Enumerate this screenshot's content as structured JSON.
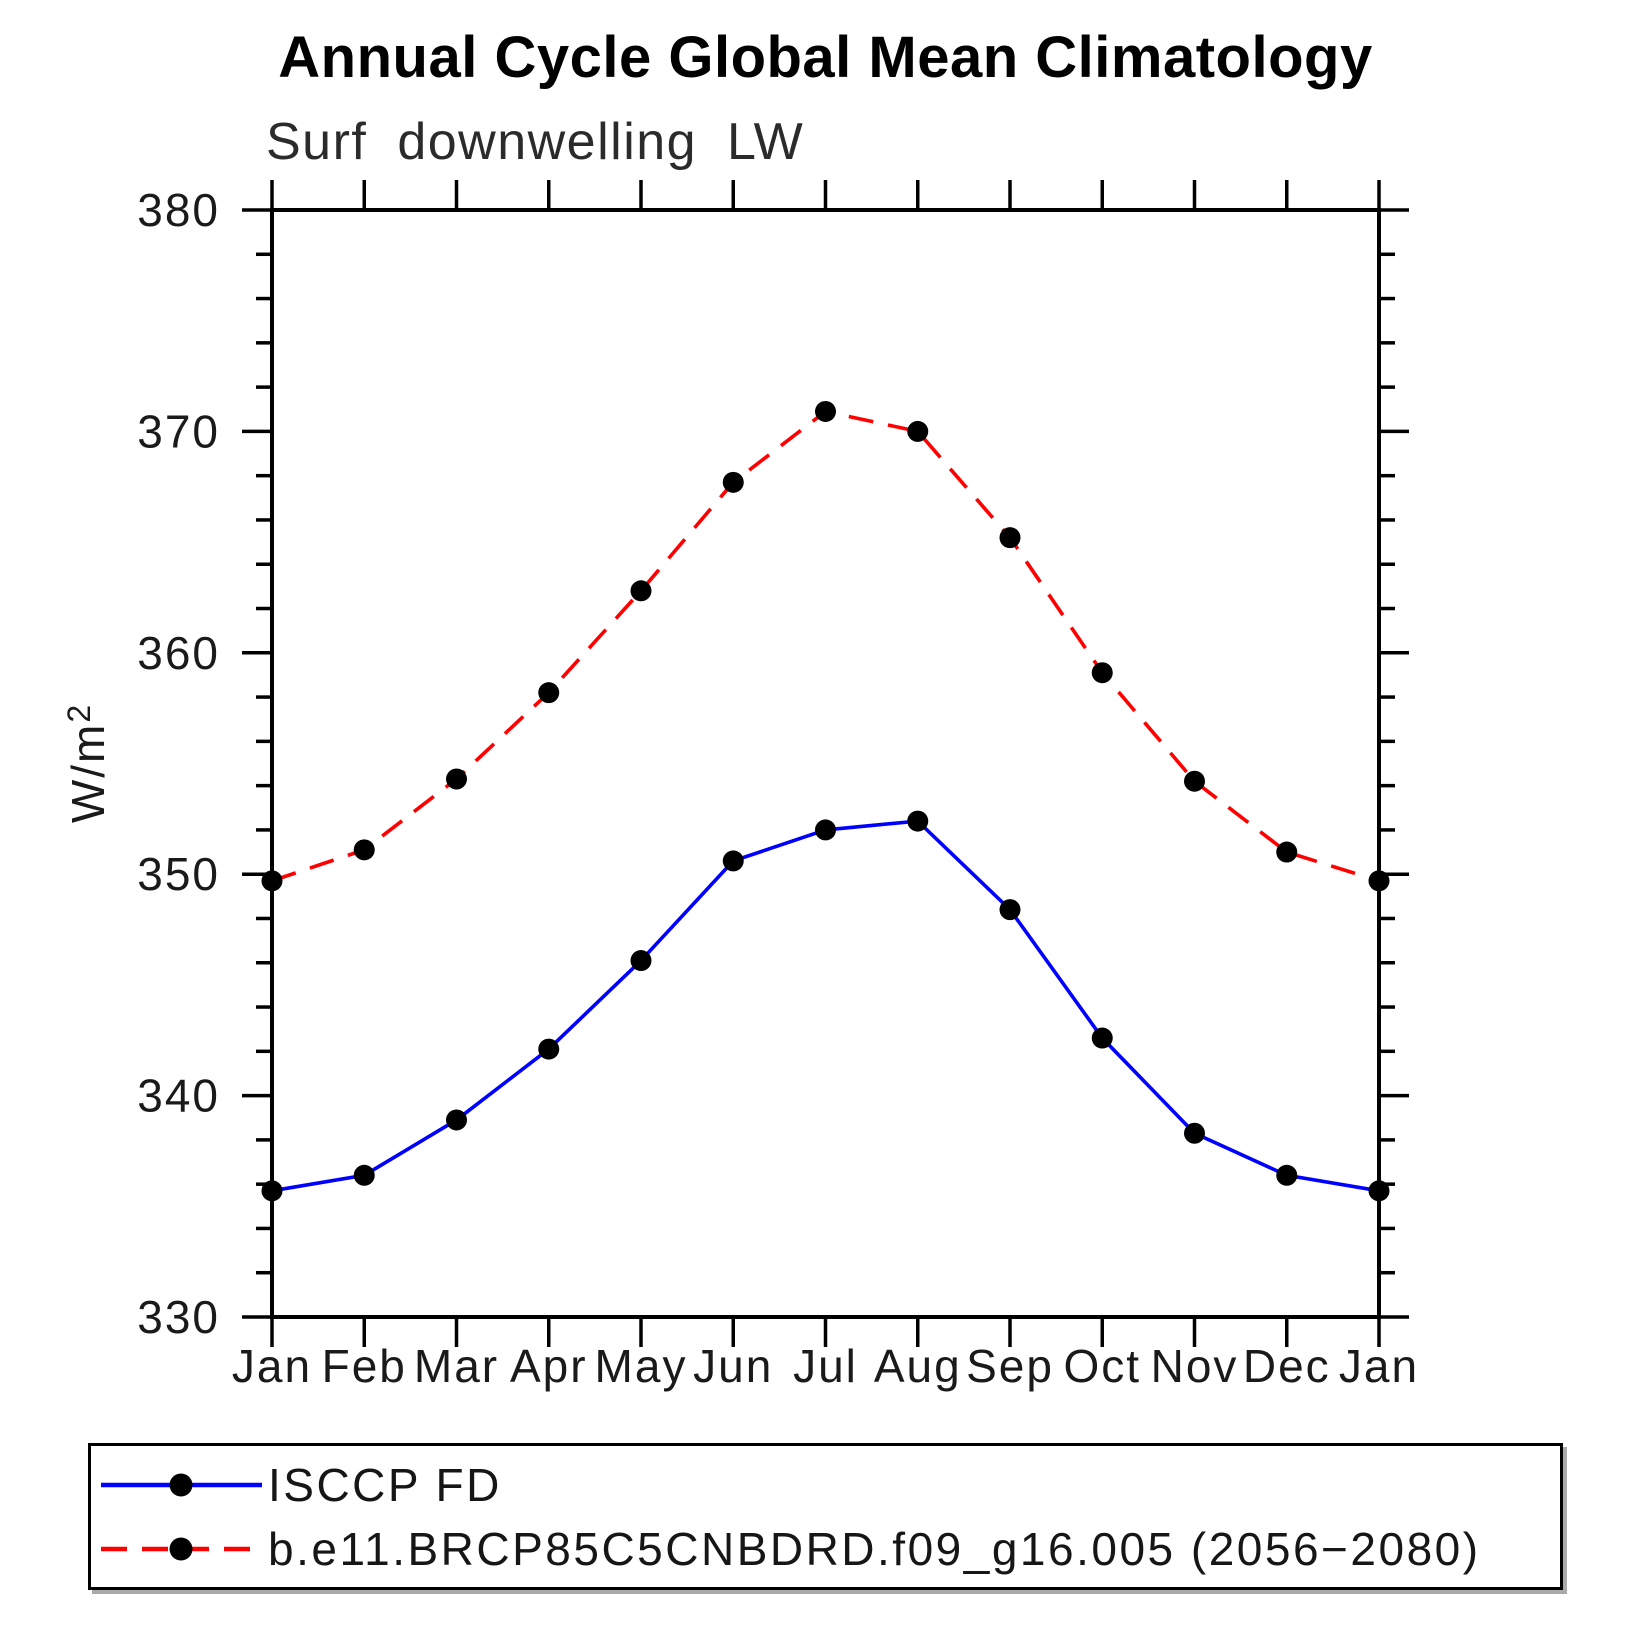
{
  "title": "Annual Cycle Global Mean Climatology",
  "subtitle": "Surf downwelling LW",
  "colors": {
    "background": "#ffffff",
    "axis": "#000000",
    "text": "#1a1a1a",
    "title_text": "#000000",
    "series_blue": "#0000ff",
    "series_red": "#ff0000",
    "marker": "#000000"
  },
  "chart_data": {
    "type": "line",
    "title": "Annual Cycle Global Mean Climatology",
    "subtitle": "Surf downwelling LW",
    "xlabel": "",
    "ylabel": "W/m²",
    "ylabel_base": "W/m",
    "ylabel_exp": "2",
    "categories": [
      "Jan",
      "Feb",
      "Mar",
      "Apr",
      "May",
      "Jun",
      "Jul",
      "Aug",
      "Sep",
      "Oct",
      "Nov",
      "Dec",
      "Jan"
    ],
    "ylim": [
      330,
      380
    ],
    "y_major_step": 10,
    "y_minor_step": 2,
    "y_tick_labels": [
      "330",
      "340",
      "350",
      "360",
      "370",
      "380"
    ],
    "grid": false,
    "legend_position": "bottom",
    "series": [
      {
        "name": "ISCCP FD",
        "color": "#0000ff",
        "line_style": "solid",
        "marker": "circle",
        "marker_color": "#000000",
        "values": [
          335.7,
          336.4,
          338.9,
          342.1,
          346.1,
          350.6,
          352.0,
          352.4,
          348.4,
          342.6,
          338.3,
          336.4,
          335.7
        ]
      },
      {
        "name": "b.e11.BRCP85C5CNBDRD.f09_g16.005 (2056−2080)",
        "color": "#ff0000",
        "line_style": "dashed",
        "marker": "circle",
        "marker_color": "#000000",
        "values": [
          349.7,
          351.1,
          354.3,
          358.2,
          362.8,
          367.7,
          370.9,
          370.0,
          365.2,
          359.1,
          354.2,
          351.0,
          349.7
        ]
      }
    ]
  }
}
